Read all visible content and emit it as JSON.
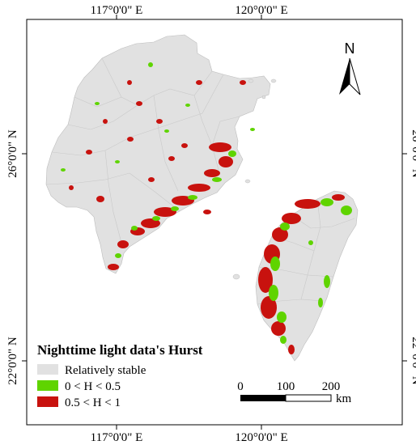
{
  "coordinates": {
    "top": [
      "117°0'0\" E",
      "120°0'0\" E"
    ],
    "bottom": [
      "117°0'0\" E",
      "120°0'0\" E"
    ],
    "left": [
      "26°0'0\" N",
      "22°0'0\" N"
    ],
    "right": [
      "26°0'0\" N",
      "22°0'0\" N"
    ]
  },
  "north_arrow": {
    "letter": "N"
  },
  "legend": {
    "title": "Nighttime light data's Hurst",
    "items": [
      {
        "label": "Relatively stable",
        "color": "#e1e1e1"
      },
      {
        "label": "0 < H < 0.5",
        "color": "#5fd400"
      },
      {
        "label": "0.5 < H < 1",
        "color": "#c8120e"
      }
    ]
  },
  "scale_bar": {
    "ticks": [
      "0",
      "100",
      "200"
    ],
    "unit": "km"
  },
  "colors": {
    "land": "#e1e1e1",
    "low_hurst": "#5fd400",
    "high_hurst": "#c8120e",
    "boundary": "#c4c4c4"
  }
}
